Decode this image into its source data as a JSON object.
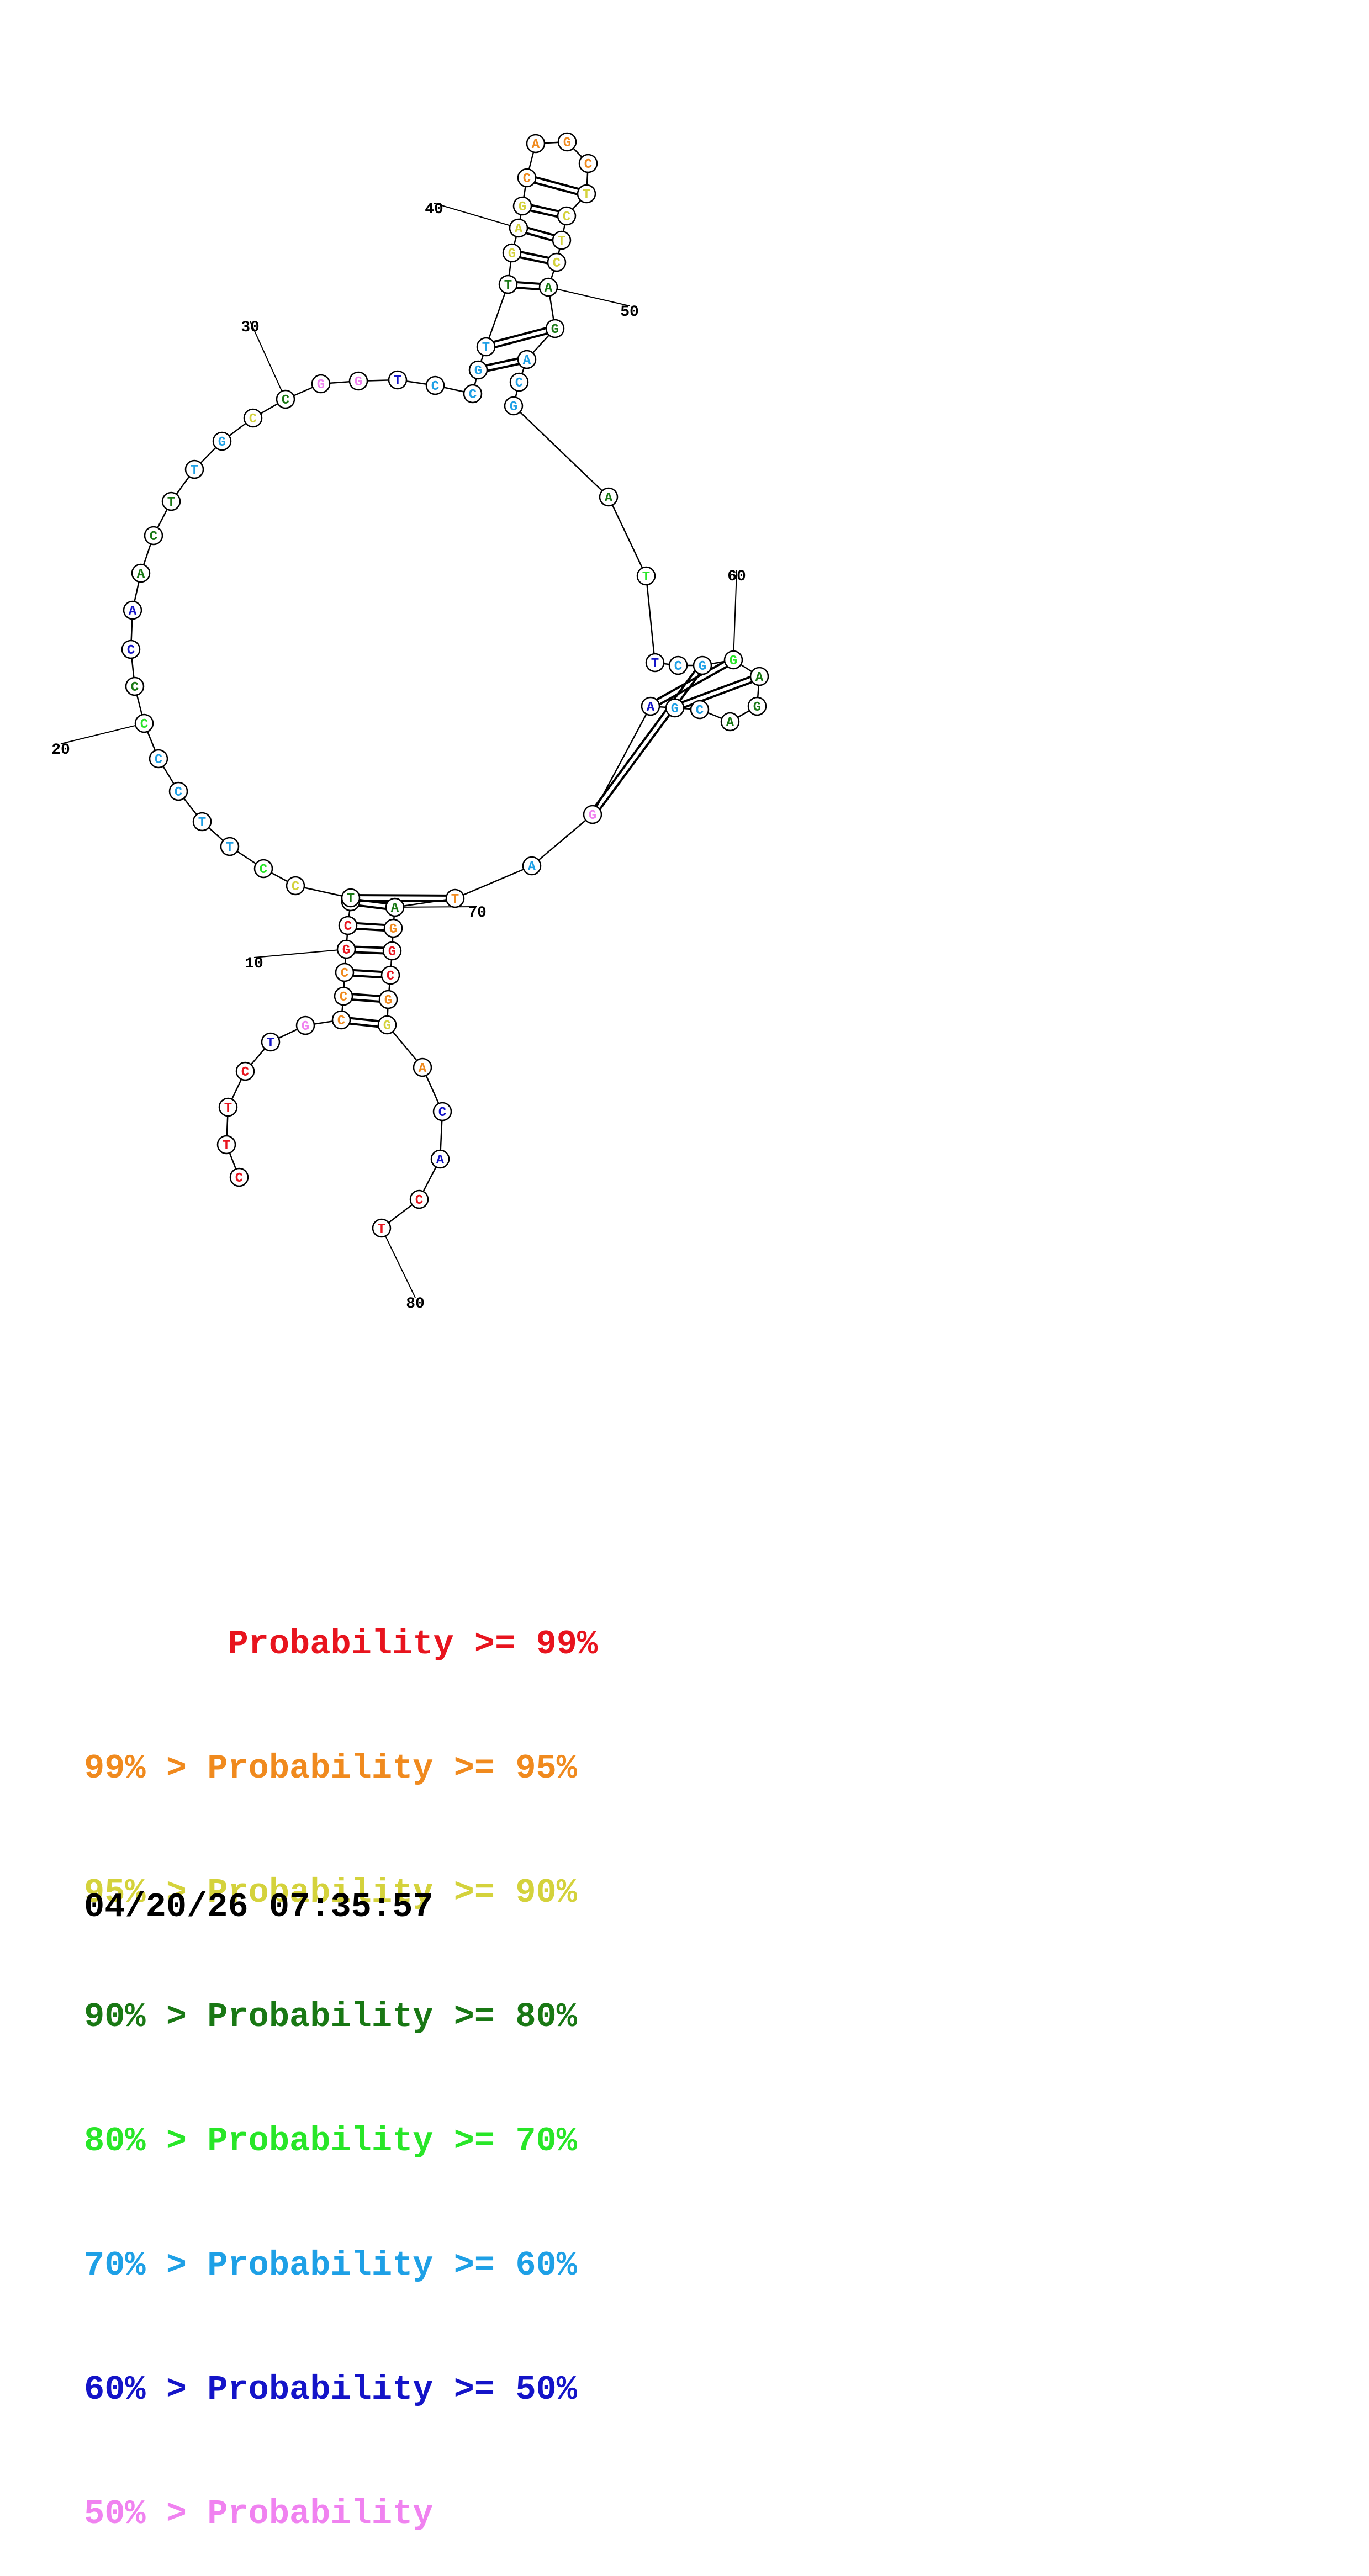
{
  "colors": {
    "p99": "#e8141e",
    "p95": "#f08a1e",
    "p90": "#d4d23c",
    "p80": "#197814",
    "p70": "#28e628",
    "p60": "#1ea0e6",
    "p50": "#1414c8",
    "plow": "#f082f0"
  },
  "sequence": [
    {
      "b": "C",
      "c": "p99"
    },
    {
      "b": "T",
      "c": "p99"
    },
    {
      "b": "T",
      "c": "p99"
    },
    {
      "b": "C",
      "c": "p99"
    },
    {
      "b": "T",
      "c": "p50"
    },
    {
      "b": "G",
      "c": "plow"
    },
    {
      "b": "C",
      "c": "p95"
    },
    {
      "b": "C",
      "c": "p95"
    },
    {
      "b": "C",
      "c": "p95"
    },
    {
      "b": "G",
      "c": "p99"
    },
    {
      "b": "C",
      "c": "p99"
    },
    {
      "b": "C",
      "c": "p95"
    },
    {
      "b": "T",
      "c": "p80"
    },
    {
      "b": "C",
      "c": "p90"
    },
    {
      "b": "C",
      "c": "p70"
    },
    {
      "b": "T",
      "c": "p60"
    },
    {
      "b": "T",
      "c": "p60"
    },
    {
      "b": "C",
      "c": "p60"
    },
    {
      "b": "C",
      "c": "p60"
    },
    {
      "b": "C",
      "c": "p70"
    },
    {
      "b": "C",
      "c": "p80"
    },
    {
      "b": "C",
      "c": "p50"
    },
    {
      "b": "A",
      "c": "p50"
    },
    {
      "b": "A",
      "c": "p80"
    },
    {
      "b": "C",
      "c": "p80"
    },
    {
      "b": "T",
      "c": "p80"
    },
    {
      "b": "T",
      "c": "p60"
    },
    {
      "b": "G",
      "c": "p60"
    },
    {
      "b": "C",
      "c": "p90"
    },
    {
      "b": "C",
      "c": "p80"
    },
    {
      "b": "G",
      "c": "plow"
    },
    {
      "b": "G",
      "c": "plow"
    },
    {
      "b": "T",
      "c": "p50"
    },
    {
      "b": "C",
      "c": "p60"
    },
    {
      "b": "C",
      "c": "p60"
    },
    {
      "b": "G",
      "c": "p60"
    },
    {
      "b": "T",
      "c": "p60"
    },
    {
      "b": "T",
      "c": "p80"
    },
    {
      "b": "G",
      "c": "p90"
    },
    {
      "b": "A",
      "c": "p90"
    },
    {
      "b": "G",
      "c": "p90"
    },
    {
      "b": "C",
      "c": "p95"
    },
    {
      "b": "A",
      "c": "p95"
    },
    {
      "b": "G",
      "c": "p95"
    },
    {
      "b": "C",
      "c": "p95"
    },
    {
      "b": "T",
      "c": "p90"
    },
    {
      "b": "C",
      "c": "p90"
    },
    {
      "b": "T",
      "c": "p90"
    },
    {
      "b": "C",
      "c": "p90"
    },
    {
      "b": "A",
      "c": "p80"
    },
    {
      "b": "G",
      "c": "p80"
    },
    {
      "b": "A",
      "c": "p60"
    },
    {
      "b": "C",
      "c": "p60"
    },
    {
      "b": "G",
      "c": "p60"
    },
    {
      "b": "A",
      "c": "p80"
    },
    {
      "b": "T",
      "c": "p70"
    },
    {
      "b": "T",
      "c": "p50"
    },
    {
      "b": "C",
      "c": "p60"
    },
    {
      "b": "G",
      "c": "p60"
    },
    {
      "b": "G",
      "c": "p70"
    },
    {
      "b": "A",
      "c": "p80"
    },
    {
      "b": "G",
      "c": "p80"
    },
    {
      "b": "A",
      "c": "p80"
    },
    {
      "b": "C",
      "c": "p60"
    },
    {
      "b": "G",
      "c": "p60"
    },
    {
      "b": "A",
      "c": "p50"
    },
    {
      "b": "G",
      "c": "plow"
    },
    {
      "b": "A",
      "c": "p60"
    },
    {
      "b": "T",
      "c": "p95"
    },
    {
      "b": "A",
      "c": "p80"
    },
    {
      "b": "G",
      "c": "p95"
    },
    {
      "b": "G",
      "c": "p99"
    },
    {
      "b": "C",
      "c": "p99"
    },
    {
      "b": "G",
      "c": "p95"
    },
    {
      "b": "G",
      "c": "p90"
    },
    {
      "b": "A",
      "c": "p95"
    },
    {
      "b": "C",
      "c": "p50"
    },
    {
      "b": "A",
      "c": "p50"
    },
    {
      "b": "C",
      "c": "p99"
    },
    {
      "b": "T",
      "c": "p99"
    }
  ],
  "pairs": [
    [
      7,
      75
    ],
    [
      8,
      74
    ],
    [
      9,
      73
    ],
    [
      10,
      72
    ],
    [
      11,
      71
    ],
    [
      12,
      70
    ],
    [
      13,
      69
    ],
    [
      36,
      52
    ],
    [
      37,
      51
    ],
    [
      38,
      50
    ],
    [
      39,
      49
    ],
    [
      40,
      48
    ],
    [
      41,
      47
    ],
    [
      42,
      46
    ],
    [
      59,
      67
    ],
    [
      60,
      66
    ],
    [
      61,
      65
    ]
  ],
  "position_labels": [
    "10",
    "20",
    "30",
    "40",
    "50",
    "60",
    "70",
    "80"
  ],
  "legend": [
    {
      "text": "       Probability >= 99%",
      "c": "p99"
    },
    {
      "text": "99% > Probability >= 95%",
      "c": "p95"
    },
    {
      "text": "95% > Probability >= 90%",
      "c": "p90"
    },
    {
      "text": "90% > Probability >= 80%",
      "c": "p80"
    },
    {
      "text": "80% > Probability >= 70%",
      "c": "p70"
    },
    {
      "text": "70% > Probability >= 60%",
      "c": "p60"
    },
    {
      "text": "60% > Probability >= 50%",
      "c": "p50"
    },
    {
      "text": "50% > Probability",
      "c": "plow"
    }
  ],
  "timestamp": "04/20/26 07:35:57"
}
